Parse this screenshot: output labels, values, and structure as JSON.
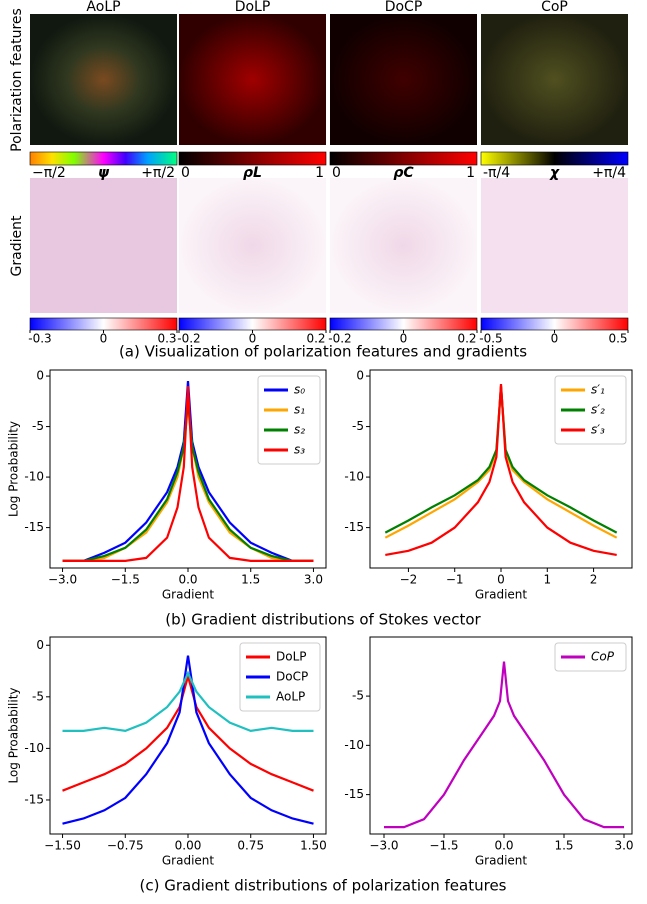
{
  "figure_a": {
    "column_titles": [
      "AoLP",
      "DoLP",
      "DoCP",
      "CoP"
    ],
    "row_labels": [
      "Polarization features",
      "Gradient"
    ],
    "feature_colorbars": [
      {
        "left": "−π/2",
        "symbol": "ψ",
        "right": "+π/2"
      },
      {
        "left": "0",
        "symbol": "ρL",
        "right": "1"
      },
      {
        "left": "0",
        "symbol": "ρC",
        "right": "1"
      },
      {
        "left": "-π/4",
        "symbol": "χ",
        "right": "+π/4"
      }
    ],
    "gradient_colorbars": [
      {
        "lim": [
          -0.3,
          0.3
        ],
        "ticks": [
          -0.3,
          0,
          0.3
        ]
      },
      {
        "lim": [
          -0.2,
          0.2
        ],
        "ticks": [
          -0.2,
          0,
          0.2
        ]
      },
      {
        "lim": [
          -0.2,
          0.2
        ],
        "ticks": [
          -0.2,
          0,
          0.2
        ]
      },
      {
        "lim": [
          -0.5,
          0.5
        ],
        "ticks": [
          -0.5,
          0,
          0.5
        ]
      }
    ],
    "caption": "(a) Visualization of polarization features and gradients"
  },
  "captions": {
    "b": "(b) Gradient distributions of Stokes vector",
    "c": "(c) Gradient distributions of polarization features"
  },
  "chart_data": [
    {
      "type": "line",
      "xlabel": "Gradient",
      "ylabel": "Log Proabability",
      "legend": "upper right",
      "x": [
        -3,
        -2.5,
        -2,
        -1.5,
        -1,
        -0.5,
        -0.25,
        -0.1,
        0,
        0.1,
        0.25,
        0.5,
        1,
        1.5,
        2,
        2.5,
        3
      ],
      "xlim": [
        -3.3,
        3.3
      ],
      "ylim": [
        -19,
        0.6
      ],
      "xticks": [
        {
          "value": -3,
          "label": "−3.0"
        },
        {
          "value": -1.5,
          "label": "−1.5"
        },
        {
          "value": 0,
          "label": "0.0"
        },
        {
          "value": 1.5,
          "label": "1.5"
        },
        {
          "value": 3,
          "label": "3.0"
        }
      ],
      "yticks": [
        0,
        -5,
        -10,
        -15
      ],
      "series": [
        {
          "name": "s₀",
          "color": "#0000ff",
          "values": [
            -18.3,
            -18.3,
            -17.5,
            -16.5,
            -14.5,
            -11.5,
            -9,
            -6.5,
            -0.5,
            -6.5,
            -9,
            -11.5,
            -14.5,
            -16.5,
            -17.5,
            -18.3,
            -18.3
          ]
        },
        {
          "name": "s₁",
          "color": "#ffa500",
          "values": [
            -18.3,
            -18.3,
            -18,
            -17,
            -15.5,
            -12.5,
            -10,
            -7,
            -3,
            -7,
            -10,
            -12.5,
            -15.5,
            -17,
            -18,
            -18.3,
            -18.3
          ]
        },
        {
          "name": "s₂",
          "color": "#008000",
          "values": [
            -18.3,
            -18.3,
            -17.8,
            -17,
            -15.2,
            -12.2,
            -9.5,
            -7,
            -2.5,
            -7,
            -9.5,
            -12.2,
            -15.2,
            -17,
            -17.8,
            -18.3,
            -18.3
          ]
        },
        {
          "name": "s₃",
          "color": "#ff0000",
          "values": [
            -18.3,
            -18.3,
            -18.3,
            -18.3,
            -18,
            -16,
            -13,
            -9,
            -1,
            -9,
            -13,
            -16,
            -18,
            -18.3,
            -18.3,
            -18.3,
            -18.3
          ]
        }
      ]
    },
    {
      "type": "line",
      "xlabel": "Gradient",
      "legend": "upper right",
      "x": [
        -2.5,
        -2,
        -1.5,
        -1,
        -0.5,
        -0.25,
        -0.1,
        0,
        0.1,
        0.25,
        0.5,
        1,
        1.5,
        2,
        2.5
      ],
      "xlim": [
        -2.83,
        2.83
      ],
      "ylim": [
        -19,
        0.6
      ],
      "xticks": [
        {
          "value": -2,
          "label": "−2"
        },
        {
          "value": -1,
          "label": "−1"
        },
        0,
        1,
        2
      ],
      "yticks": [
        0,
        -5,
        -10,
        -15
      ],
      "series": [
        {
          "name": "s′₁",
          "color": "#ffa500",
          "values": [
            -16,
            -14.8,
            -13.5,
            -12.2,
            -10.5,
            -9.3,
            -7.5,
            -1,
            -7.5,
            -9.3,
            -10.5,
            -12.2,
            -13.5,
            -14.8,
            -16
          ]
        },
        {
          "name": "s′₂",
          "color": "#008000",
          "values": [
            -15.5,
            -14.3,
            -13,
            -11.8,
            -10.3,
            -9,
            -7.3,
            -1,
            -7.3,
            -9,
            -10.3,
            -11.8,
            -13,
            -14.3,
            -15.5
          ]
        },
        {
          "name": "s′₃",
          "color": "#ff0000",
          "values": [
            -17.7,
            -17.3,
            -16.5,
            -15,
            -12.5,
            -10.5,
            -8,
            -0.8,
            -8,
            -10.5,
            -12.5,
            -15,
            -16.5,
            -17.3,
            -17.7
          ]
        }
      ]
    },
    {
      "type": "line",
      "xlabel": "Gradient",
      "ylabel": "Log Proabability",
      "legend": "upper right",
      "x": [
        -1.5,
        -1.25,
        -1,
        -0.75,
        -0.5,
        -0.25,
        -0.1,
        0,
        0.1,
        0.25,
        0.5,
        0.75,
        1,
        1.25,
        1.5
      ],
      "xlim": [
        -1.65,
        1.65
      ],
      "ylim": [
        -18.3,
        0.8
      ],
      "xticks": [
        {
          "value": -1.5,
          "label": "−1.50"
        },
        {
          "value": -0.75,
          "label": "−0.75"
        },
        {
          "value": 0,
          "label": "0.00"
        },
        {
          "value": 0.75,
          "label": "0.75"
        },
        {
          "value": 1.5,
          "label": "1.50"
        }
      ],
      "yticks": [
        0,
        -5,
        -10,
        -15
      ],
      "series": [
        {
          "name": "DoLP",
          "color": "#ff0000",
          "values": [
            -14.1,
            -13.3,
            -12.5,
            -11.5,
            -10,
            -8,
            -6,
            -3,
            -6,
            -8,
            -10,
            -11.5,
            -12.5,
            -13.3,
            -14.1
          ]
        },
        {
          "name": "DoCP",
          "color": "#0000ff",
          "values": [
            -17.3,
            -16.8,
            -16,
            -14.8,
            -12.5,
            -9.5,
            -6.5,
            -1,
            -6.5,
            -9.5,
            -12.5,
            -14.8,
            -16,
            -16.8,
            -17.3
          ]
        },
        {
          "name": "AoLP",
          "color": "#20c0c0",
          "values": [
            -8.3,
            -8.3,
            -8,
            -8.3,
            -7.5,
            -6,
            -4.5,
            -2.7,
            -4.5,
            -6,
            -7.5,
            -8.3,
            -8,
            -8.3,
            -8.3
          ]
        }
      ]
    },
    {
      "type": "line",
      "xlabel": "Gradient",
      "legend": "upper right",
      "x": [
        -3,
        -2.5,
        -2,
        -1.5,
        -1,
        -0.5,
        -0.25,
        -0.1,
        0,
        0.1,
        0.25,
        0.5,
        1,
        1.5,
        2,
        2.5,
        3
      ],
      "xlim": [
        -3.35,
        3.2
      ],
      "ylim": [
        -19,
        1
      ],
      "xticks": [
        {
          "value": -3,
          "label": "−3.0"
        },
        {
          "value": -1.5,
          "label": "−1.5"
        },
        {
          "value": 0,
          "label": "0.0"
        },
        {
          "value": 1.5,
          "label": "1.5"
        },
        {
          "value": 3,
          "label": "3.0"
        }
      ],
      "yticks": [
        -5,
        -10,
        -15
      ],
      "series": [
        {
          "name": "CoP",
          "color": "#bf00bf",
          "values": [
            -18.3,
            -18.3,
            -17.5,
            -15,
            -11.5,
            -8.5,
            -7,
            -5.5,
            -1.5,
            -5.5,
            -7,
            -8.5,
            -11.5,
            -15,
            -17.5,
            -18.3,
            -18.3
          ]
        }
      ]
    }
  ]
}
